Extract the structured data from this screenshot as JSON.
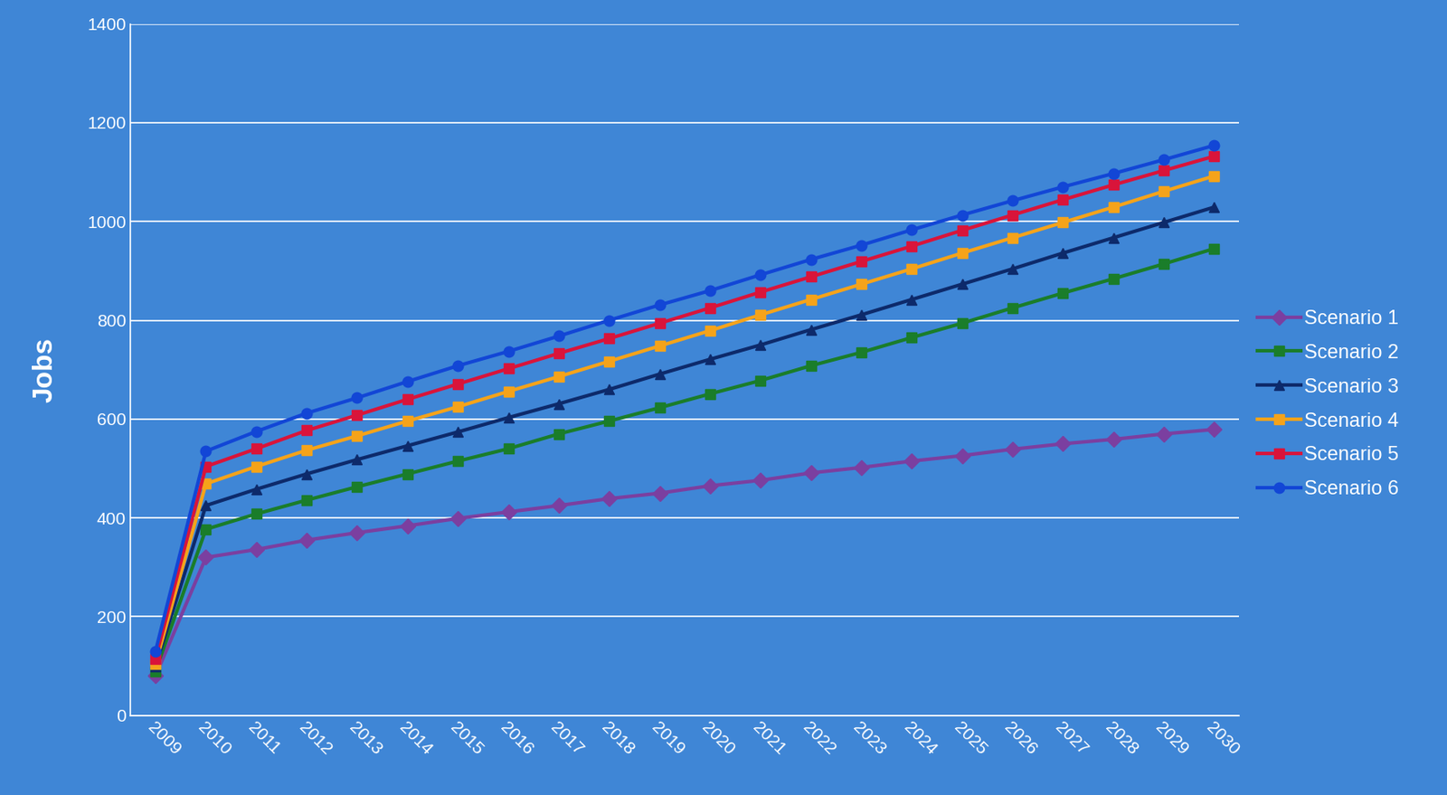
{
  "chart_data": {
    "type": "line",
    "y_label": "Jobs",
    "categories": [
      "2009",
      "2010",
      "2011",
      "2012",
      "2013",
      "2014",
      "2015",
      "2016",
      "2017",
      "2018",
      "2019",
      "2020",
      "2021",
      "2022",
      "2023",
      "2024",
      "2025",
      "2026",
      "2027",
      "2028",
      "2029",
      "2030"
    ],
    "series": [
      {
        "name": "Scenario 1",
        "color": "#7b3fa0",
        "marker": "diamond",
        "values": [
          80,
          320,
          336,
          355,
          370,
          384,
          399,
          412,
          425,
          439,
          450,
          465,
          476,
          491,
          502,
          515,
          526,
          539,
          550,
          559,
          570,
          579
        ]
      },
      {
        "name": "Scenario 2",
        "color": "#1a7d2a",
        "marker": "square",
        "values": [
          90,
          377,
          408,
          436,
          463,
          489,
          515,
          540,
          570,
          596,
          623,
          651,
          678,
          708,
          735,
          765,
          794,
          825,
          855,
          884,
          914,
          945
        ]
      },
      {
        "name": "Scenario 3",
        "color": "#0d2a6b",
        "marker": "triangle",
        "values": [
          100,
          425,
          458,
          489,
          518,
          546,
          574,
          603,
          631,
          660,
          691,
          721,
          750,
          781,
          811,
          842,
          873,
          904,
          936,
          967,
          998,
          1029
        ]
      },
      {
        "name": "Scenario 4",
        "color": "#f5a31a",
        "marker": "square",
        "values": [
          105,
          469,
          504,
          537,
          566,
          596,
          625,
          656,
          686,
          717,
          748,
          779,
          811,
          842,
          873,
          904,
          936,
          967,
          998,
          1029,
          1061,
          1092
        ]
      },
      {
        "name": "Scenario 5",
        "color": "#d9143a",
        "marker": "square",
        "values": [
          115,
          504,
          540,
          577,
          608,
          640,
          671,
          702,
          733,
          763,
          794,
          825,
          857,
          888,
          919,
          950,
          982,
          1013,
          1044,
          1074,
          1103,
          1132
        ]
      },
      {
        "name": "Scenario 6",
        "color": "#1246d6",
        "marker": "circle",
        "values": [
          130,
          535,
          575,
          612,
          643,
          676,
          708,
          737,
          768,
          800,
          831,
          860,
          892,
          923,
          952,
          983,
          1013,
          1042,
          1070,
          1097,
          1125,
          1154
        ]
      }
    ],
    "ylim": [
      0,
      1400
    ],
    "yticks": [
      0,
      200,
      400,
      600,
      800,
      1000,
      1200,
      1400
    ],
    "grid": true,
    "legend": "right"
  }
}
